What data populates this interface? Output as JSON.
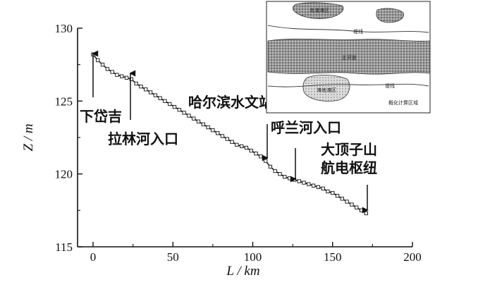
{
  "chart_data": {
    "type": "line",
    "title": "",
    "xlabel": "L / km",
    "ylabel": "Z / m",
    "xlim": [
      -5,
      200
    ],
    "ylim": [
      115,
      130
    ],
    "xticks": [
      0,
      50,
      100,
      150,
      200
    ],
    "yticks": [
      115,
      120,
      125,
      130
    ],
    "grid": false,
    "series": [
      {
        "marker": "open-square",
        "x": [
          0,
          3,
          6,
          9,
          12,
          15,
          18,
          21,
          24,
          27,
          30,
          33,
          36,
          39,
          42,
          45,
          48,
          51,
          54,
          57,
          60,
          63,
          66,
          69,
          72,
          75,
          78,
          81,
          84,
          87,
          90,
          93,
          96,
          99,
          102,
          105,
          108,
          111,
          114,
          117,
          120,
          123,
          126,
          129,
          132,
          135,
          138,
          141,
          144,
          147,
          150,
          153,
          156,
          159,
          162,
          165,
          168,
          171
        ],
        "y": [
          128.2,
          127.8,
          127.5,
          127.2,
          127.0,
          126.8,
          126.7,
          126.6,
          126.5,
          126.2,
          126.0,
          125.8,
          125.6,
          125.4,
          125.2,
          125.0,
          124.8,
          124.6,
          124.4,
          124.2,
          124.0,
          123.8,
          123.6,
          123.4,
          123.2,
          123.0,
          122.8,
          122.6,
          122.4,
          122.2,
          122.0,
          121.9,
          121.8,
          121.6,
          121.4,
          121.2,
          120.9,
          120.5,
          120.2,
          120.0,
          119.8,
          119.7,
          119.6,
          119.5,
          119.4,
          119.3,
          119.2,
          119.1,
          119.0,
          118.8,
          118.7,
          118.5,
          118.3,
          118.1,
          117.9,
          117.7,
          117.5,
          117.3
        ]
      }
    ],
    "annotations": [
      {
        "text": "下岱吉",
        "x": 0,
        "y": 128.2
      },
      {
        "text": "拉林河入口",
        "x": 23,
        "y": 126.6
      },
      {
        "text": "哈尔滨水文站",
        "x": 109,
        "y": 121.0
      },
      {
        "text": "呼兰河入口",
        "x": 126,
        "y": 119.6
      },
      {
        "text": "大顶子山\n航电枢纽",
        "x": 172,
        "y": 117.3
      }
    ]
  },
  "inset": {
    "labels": {
      "top_zone": "岛滩滩区",
      "upper_dike": "堤线",
      "main_channel": "主河道",
      "island_zone": "滩地滩区",
      "lower_dike": "堤线",
      "caption": "概化计算区域"
    }
  }
}
